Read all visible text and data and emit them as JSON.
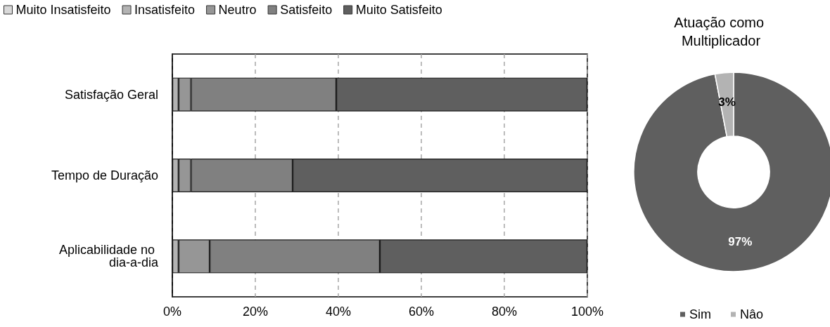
{
  "chart_data": [
    {
      "type": "bar",
      "orientation": "horizontal",
      "stacked": true,
      "categories": [
        "Satisfação Geral",
        "Tempo de Duração",
        "Aplicabilidade no dia-a-dia"
      ],
      "series": [
        {
          "name": "Muito Insatisfeito",
          "color": "#d9d9d9",
          "values": [
            0,
            0,
            0
          ]
        },
        {
          "name": "Insatisfeito",
          "color": "#b3b3b3",
          "values": [
            1.5,
            1.5,
            1.5
          ]
        },
        {
          "name": "Neutro",
          "color": "#969696",
          "values": [
            3,
            3,
            7.5
          ]
        },
        {
          "name": "Satisfeito",
          "color": "#808080",
          "values": [
            35,
            24.5,
            41
          ]
        },
        {
          "name": "Muito Satisfeito",
          "color": "#5f5f5f",
          "values": [
            60.5,
            71,
            50
          ]
        }
      ],
      "xlim": [
        0,
        100
      ],
      "xticks": [
        {
          "value": 0,
          "label": "0%"
        },
        {
          "value": 20,
          "label": "20%"
        },
        {
          "value": 40,
          "label": "40%"
        },
        {
          "value": 60,
          "label": "60%"
        },
        {
          "value": 80,
          "label": "80%"
        },
        {
          "value": 100,
          "label": "100%"
        }
      ],
      "grid": "x",
      "legend": "top left"
    },
    {
      "type": "donut",
      "title": "Atuação como Multiplicador",
      "categories": [
        "Sim",
        "Nâo"
      ],
      "values": [
        97,
        3
      ],
      "colors": [
        "#5f5f5f",
        "#b3b3b3"
      ],
      "value_labels": [
        "97%",
        "3%"
      ],
      "legend": "bottom"
    }
  ]
}
